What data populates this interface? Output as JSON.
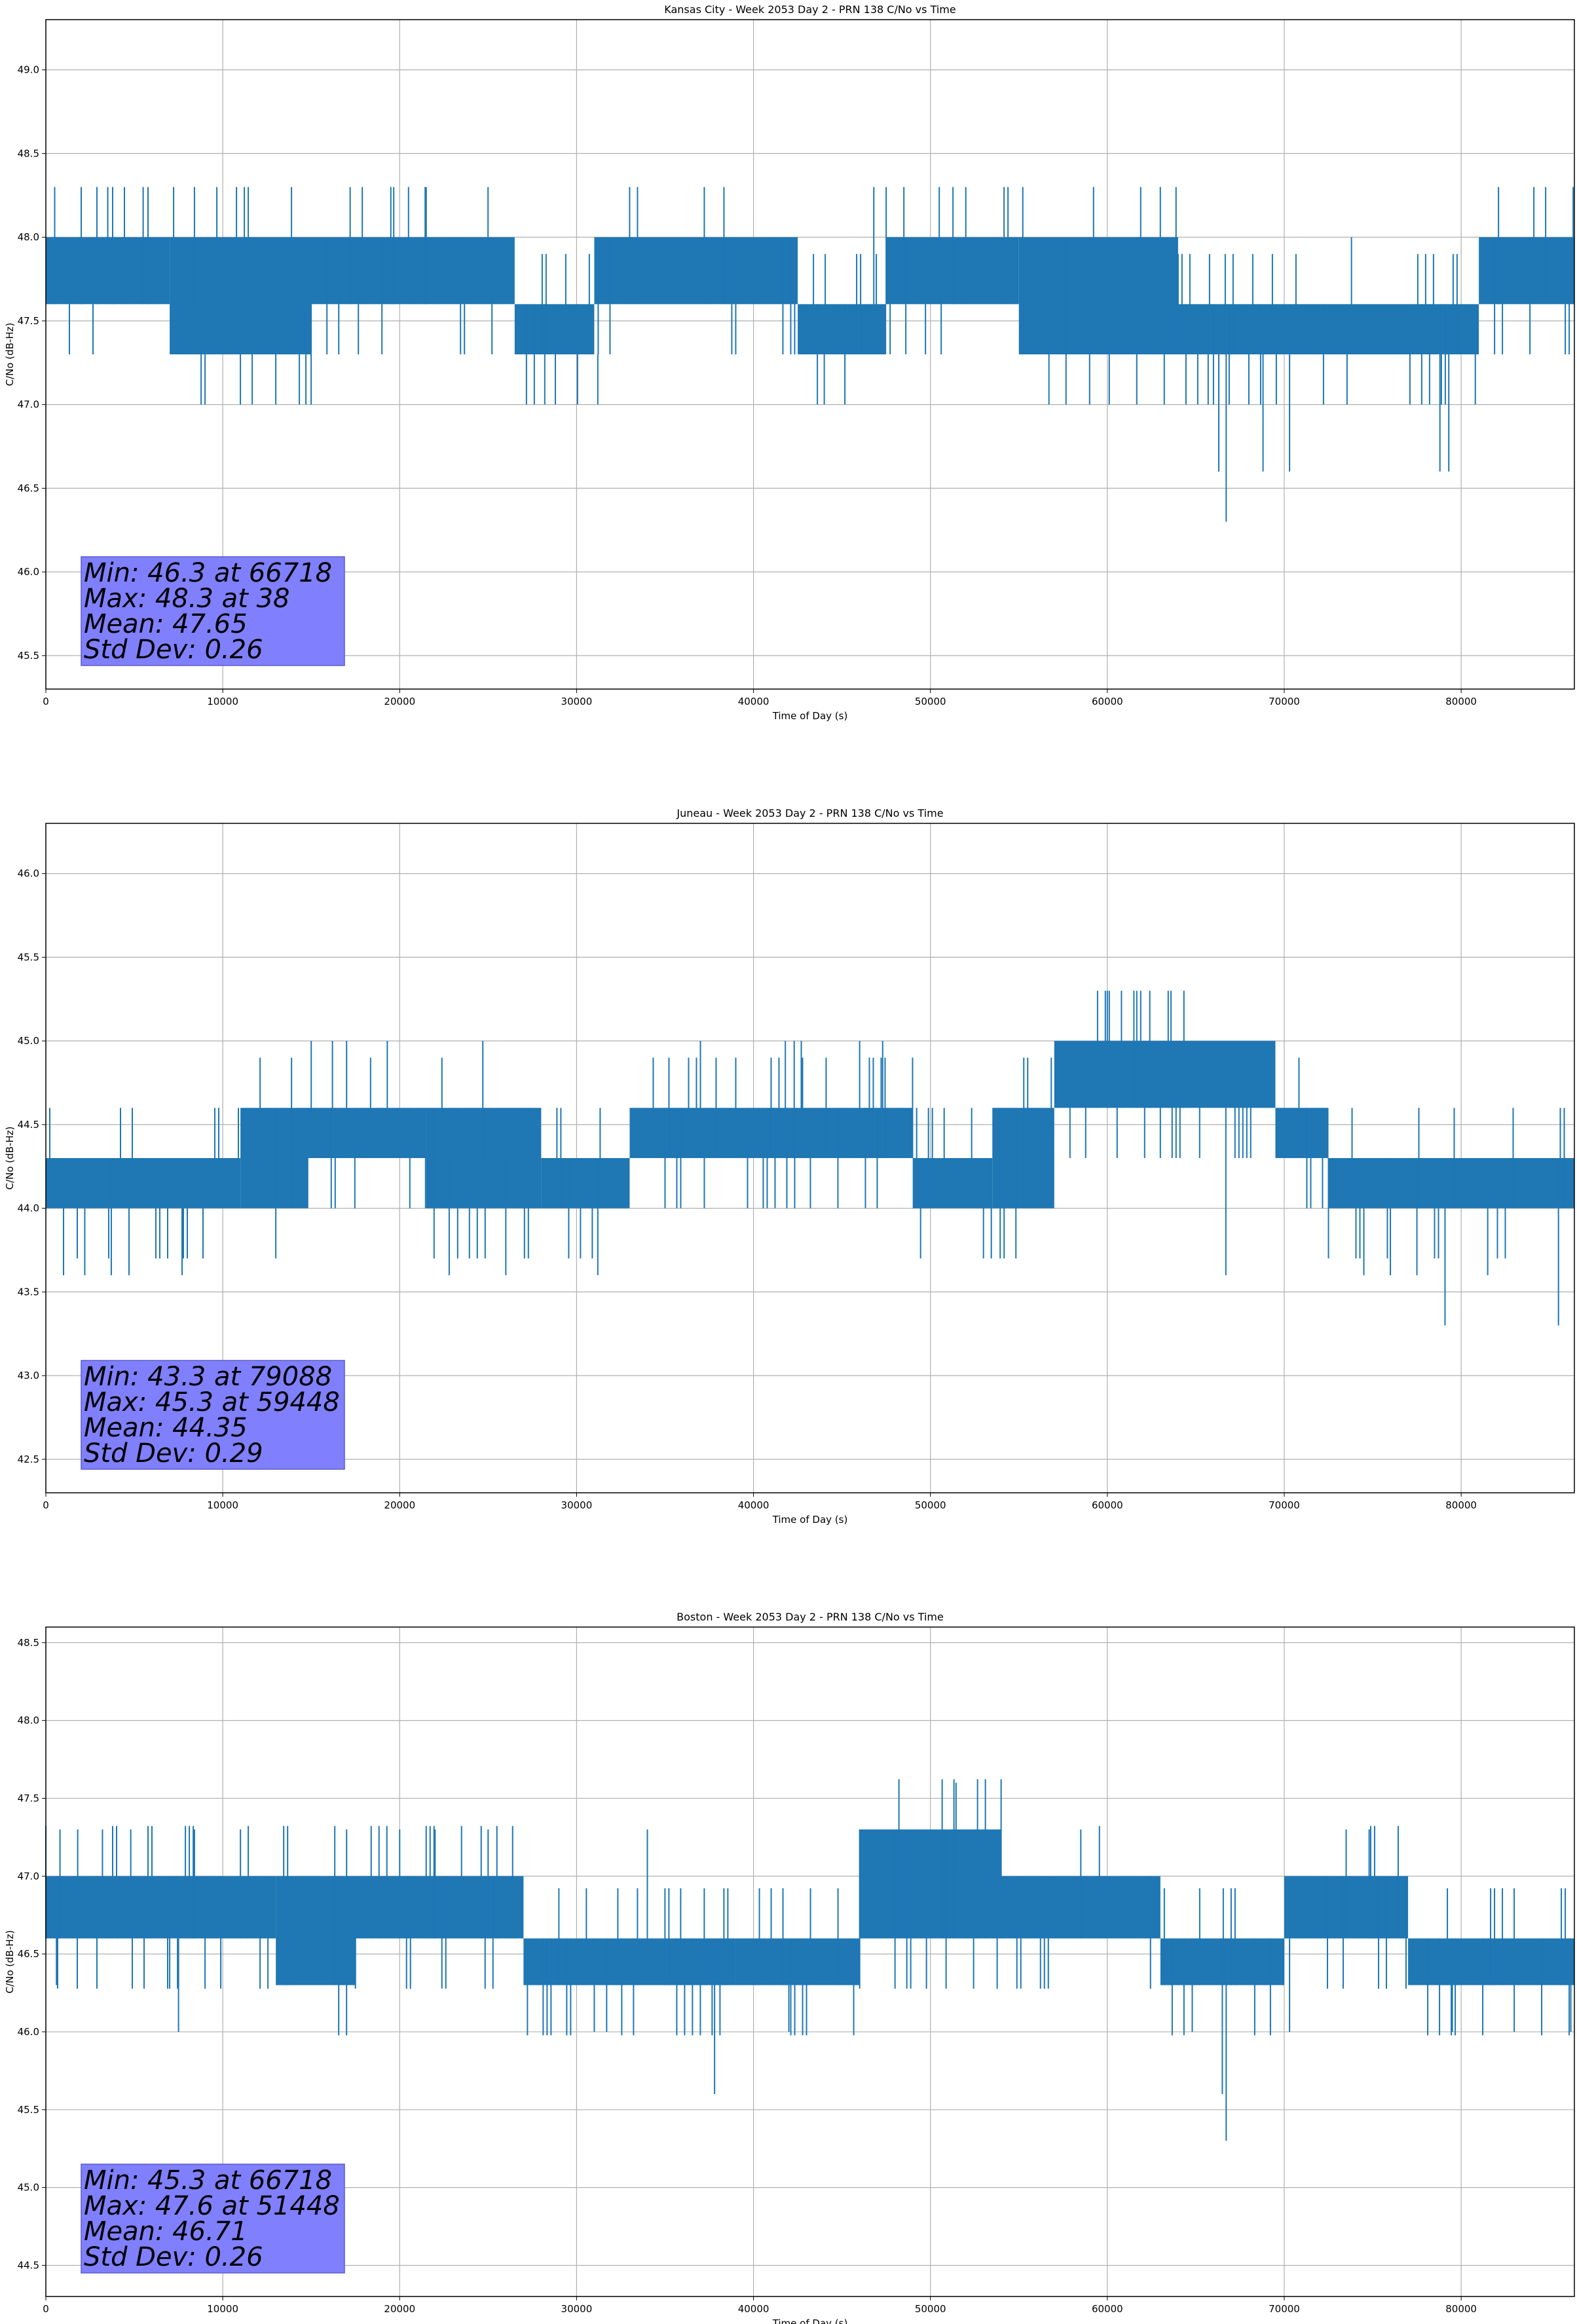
{
  "chart_data": [
    {
      "type": "line",
      "title": "Kansas City - Week 2053 Day 2 - PRN 138 C/No vs Time",
      "xlabel": "Time of Day (s)",
      "ylabel": "C/No (dB-Hz)",
      "xlim": [
        0,
        86400
      ],
      "ylim": [
        45.3,
        49.3
      ],
      "xticks": [
        0,
        10000,
        20000,
        30000,
        40000,
        50000,
        60000,
        70000,
        80000
      ],
      "xtick_labels": [
        "0",
        "10000",
        "20000",
        "30000",
        "40000",
        "50000",
        "60000",
        "70000",
        "80000"
      ],
      "yticks": [
        45.5,
        46.0,
        46.5,
        47.0,
        47.5,
        48.0,
        48.5,
        49.0
      ],
      "ytick_labels": [
        "45.5",
        "46.0",
        "46.5",
        "47.0",
        "47.5",
        "48.0",
        "48.5",
        "49.0"
      ],
      "grid": true,
      "series_color": "#1f77b4",
      "bands": [
        {
          "x": [
            0,
            7000
          ],
          "lo": 47.6,
          "hi": 48.0
        },
        {
          "x": [
            7000,
            15000
          ],
          "lo": 47.3,
          "hi": 48.0
        },
        {
          "x": [
            15000,
            26500
          ],
          "lo": 47.6,
          "hi": 48.0
        },
        {
          "x": [
            26500,
            31000
          ],
          "lo": 47.3,
          "hi": 47.6
        },
        {
          "x": [
            31000,
            42500
          ],
          "lo": 47.6,
          "hi": 48.0
        },
        {
          "x": [
            42500,
            47500
          ],
          "lo": 47.3,
          "hi": 47.6
        },
        {
          "x": [
            47500,
            55000
          ],
          "lo": 47.6,
          "hi": 48.0
        },
        {
          "x": [
            55000,
            64000
          ],
          "lo": 47.3,
          "hi": 48.0
        },
        {
          "x": [
            64000,
            81000
          ],
          "lo": 47.3,
          "hi": 47.6
        },
        {
          "x": [
            81000,
            86400
          ],
          "lo": 47.6,
          "hi": 48.0
        }
      ],
      "spikes": [
        {
          "x": 500,
          "lo": 47.6,
          "hi": 48.3
        },
        {
          "x": 2000,
          "lo": 47.6,
          "hi": 48.3
        },
        {
          "x": 3500,
          "lo": 47.6,
          "hi": 48.3
        },
        {
          "x": 5500,
          "lo": 47.6,
          "hi": 48.3
        },
        {
          "x": 8400,
          "lo": 47.6,
          "hi": 48.3
        },
        {
          "x": 17200,
          "lo": 47.6,
          "hi": 48.3
        },
        {
          "x": 19500,
          "lo": 47.6,
          "hi": 48.3
        },
        {
          "x": 20500,
          "lo": 47.6,
          "hi": 48.3
        },
        {
          "x": 21500,
          "lo": 47.6,
          "hi": 48.3
        },
        {
          "x": 46800,
          "lo": 47.6,
          "hi": 48.3
        },
        {
          "x": 48500,
          "lo": 47.6,
          "hi": 48.3
        },
        {
          "x": 50500,
          "lo": 47.6,
          "hi": 48.3
        },
        {
          "x": 52000,
          "lo": 47.6,
          "hi": 48.3
        },
        {
          "x": 14700,
          "lo": 47.0,
          "hi": 47.6
        },
        {
          "x": 28200,
          "lo": 47.0,
          "hi": 47.6
        },
        {
          "x": 28800,
          "lo": 47.0,
          "hi": 47.3
        },
        {
          "x": 31200,
          "lo": 47.0,
          "hi": 47.3
        },
        {
          "x": 44000,
          "lo": 47.0,
          "hi": 47.3
        },
        {
          "x": 56700,
          "lo": 47.0,
          "hi": 47.3
        },
        {
          "x": 65700,
          "lo": 47.0,
          "hi": 47.3
        },
        {
          "x": 66300,
          "lo": 46.6,
          "hi": 47.3
        },
        {
          "x": 66718,
          "lo": 46.3,
          "hi": 47.3
        },
        {
          "x": 68000,
          "lo": 47.0,
          "hi": 47.3
        },
        {
          "x": 68800,
          "lo": 46.6,
          "hi": 47.3
        },
        {
          "x": 70300,
          "lo": 46.6,
          "hi": 47.3
        },
        {
          "x": 73800,
          "lo": 47.3,
          "hi": 48.0
        },
        {
          "x": 78800,
          "lo": 46.6,
          "hi": 47.3
        },
        {
          "x": 79300,
          "lo": 46.6,
          "hi": 47.3
        },
        {
          "x": 80800,
          "lo": 47.0,
          "hi": 47.3
        }
      ],
      "noise_frac": 0.3,
      "stats_box": {
        "color": "#8080ff",
        "lines": [
          "Min: 46.3 at 66718",
          "Max: 48.3 at 38",
          "Mean: 47.65",
          "Std Dev: 0.26"
        ]
      }
    },
    {
      "type": "line",
      "title": "Juneau - Week 2053 Day 2 - PRN 138 C/No vs Time",
      "xlabel": "Time of Day (s)",
      "ylabel": "C/No (dB-Hz)",
      "xlim": [
        0,
        86400
      ],
      "ylim": [
        42.3,
        46.3
      ],
      "xticks": [
        0,
        10000,
        20000,
        30000,
        40000,
        50000,
        60000,
        70000,
        80000
      ],
      "xtick_labels": [
        "0",
        "10000",
        "20000",
        "30000",
        "40000",
        "50000",
        "60000",
        "70000",
        "80000"
      ],
      "yticks": [
        42.5,
        43.0,
        43.5,
        44.0,
        44.5,
        45.0,
        45.5,
        46.0
      ],
      "ytick_labels": [
        "42.5",
        "43.0",
        "43.5",
        "44.0",
        "44.5",
        "45.0",
        "45.5",
        "46.0"
      ],
      "grid": true,
      "series_color": "#1f77b4",
      "bands": [
        {
          "x": [
            0,
            11000
          ],
          "lo": 44.0,
          "hi": 44.3
        },
        {
          "x": [
            11000,
            14800
          ],
          "lo": 44.0,
          "hi": 44.6
        },
        {
          "x": [
            14800,
            21500
          ],
          "lo": 44.3,
          "hi": 44.6
        },
        {
          "x": [
            21500,
            28000
          ],
          "lo": 44.0,
          "hi": 44.6
        },
        {
          "x": [
            28000,
            33000
          ],
          "lo": 44.0,
          "hi": 44.3
        },
        {
          "x": [
            33000,
            49000
          ],
          "lo": 44.3,
          "hi": 44.6
        },
        {
          "x": [
            49000,
            53500
          ],
          "lo": 44.0,
          "hi": 44.3
        },
        {
          "x": [
            53500,
            57000
          ],
          "lo": 44.0,
          "hi": 44.6
        },
        {
          "x": [
            57000,
            69500
          ],
          "lo": 44.6,
          "hi": 45.0
        },
        {
          "x": [
            69500,
            72500
          ],
          "lo": 44.3,
          "hi": 44.6
        },
        {
          "x": [
            72500,
            86400
          ],
          "lo": 44.0,
          "hi": 44.3
        }
      ],
      "spikes": [
        {
          "x": 59448,
          "lo": 44.6,
          "hi": 45.3
        },
        {
          "x": 60000,
          "lo": 44.6,
          "hi": 45.3
        },
        {
          "x": 60800,
          "lo": 44.6,
          "hi": 45.3
        },
        {
          "x": 61500,
          "lo": 44.6,
          "hi": 45.3
        },
        {
          "x": 62400,
          "lo": 44.6,
          "hi": 45.3
        },
        {
          "x": 63600,
          "lo": 44.6,
          "hi": 45.3
        },
        {
          "x": 15000,
          "lo": 44.3,
          "hi": 45.0
        },
        {
          "x": 16200,
          "lo": 44.3,
          "hi": 45.0
        },
        {
          "x": 17000,
          "lo": 44.3,
          "hi": 45.0
        },
        {
          "x": 19300,
          "lo": 44.3,
          "hi": 45.0
        },
        {
          "x": 24700,
          "lo": 44.3,
          "hi": 45.0
        },
        {
          "x": 37000,
          "lo": 44.3,
          "hi": 45.0
        },
        {
          "x": 41800,
          "lo": 44.3,
          "hi": 45.0
        },
        {
          "x": 42300,
          "lo": 44.3,
          "hi": 45.0
        },
        {
          "x": 42700,
          "lo": 44.3,
          "hi": 45.0
        },
        {
          "x": 46000,
          "lo": 44.3,
          "hi": 45.0
        },
        {
          "x": 47300,
          "lo": 44.3,
          "hi": 45.0
        },
        {
          "x": 1000,
          "lo": 43.6,
          "hi": 44.3
        },
        {
          "x": 2200,
          "lo": 43.6,
          "hi": 44.3
        },
        {
          "x": 3700,
          "lo": 43.6,
          "hi": 44.3
        },
        {
          "x": 4700,
          "lo": 43.6,
          "hi": 44.3
        },
        {
          "x": 7700,
          "lo": 43.6,
          "hi": 44.3
        },
        {
          "x": 22800,
          "lo": 43.6,
          "hi": 44.3
        },
        {
          "x": 26000,
          "lo": 43.6,
          "hi": 44.3
        },
        {
          "x": 31200,
          "lo": 43.6,
          "hi": 44.3
        },
        {
          "x": 66700,
          "lo": 43.6,
          "hi": 44.6
        },
        {
          "x": 74500,
          "lo": 43.6,
          "hi": 44.3
        },
        {
          "x": 76000,
          "lo": 43.6,
          "hi": 44.3
        },
        {
          "x": 77500,
          "lo": 43.6,
          "hi": 44.3
        },
        {
          "x": 79088,
          "lo": 43.3,
          "hi": 44.3
        },
        {
          "x": 81500,
          "lo": 43.6,
          "hi": 44.3
        },
        {
          "x": 85500,
          "lo": 43.3,
          "hi": 44.3
        }
      ],
      "noise_frac": 0.3,
      "stats_box": {
        "color": "#8080ff",
        "lines": [
          "Min: 43.3 at 79088",
          "Max: 45.3 at 59448",
          "Mean: 44.35",
          "Std Dev: 0.29"
        ]
      }
    },
    {
      "type": "line",
      "title": "Boston - Week 2053 Day 2 - PRN 138 C/No vs Time",
      "xlabel": "Time of Day (s)",
      "ylabel": "C/No (dB-Hz)",
      "xlim": [
        0,
        86400
      ],
      "ylim": [
        44.3,
        48.6
      ],
      "xticks": [
        0,
        10000,
        20000,
        30000,
        40000,
        50000,
        60000,
        70000,
        80000
      ],
      "xtick_labels": [
        "0",
        "10000",
        "20000",
        "30000",
        "40000",
        "50000",
        "60000",
        "70000",
        "80000"
      ],
      "yticks": [
        44.5,
        45.0,
        45.5,
        46.0,
        46.5,
        47.0,
        47.5,
        48.0,
        48.5
      ],
      "ytick_labels": [
        "44.5",
        "45.0",
        "45.5",
        "46.0",
        "46.5",
        "47.0",
        "47.5",
        "48.0",
        "48.5"
      ],
      "grid": true,
      "series_color": "#1f77b4",
      "bands": [
        {
          "x": [
            0,
            7000
          ],
          "lo": 46.6,
          "hi": 47.0
        },
        {
          "x": [
            7000,
            13000
          ],
          "lo": 46.6,
          "hi": 47.0
        },
        {
          "x": [
            13000,
            17500
          ],
          "lo": 46.3,
          "hi": 47.0
        },
        {
          "x": [
            17500,
            27000
          ],
          "lo": 46.6,
          "hi": 47.0
        },
        {
          "x": [
            27000,
            39000
          ],
          "lo": 46.3,
          "hi": 46.6
        },
        {
          "x": [
            39000,
            46000
          ],
          "lo": 46.3,
          "hi": 46.6
        },
        {
          "x": [
            46000,
            54000
          ],
          "lo": 46.6,
          "hi": 47.3
        },
        {
          "x": [
            54000,
            63000
          ],
          "lo": 46.6,
          "hi": 47.0
        },
        {
          "x": [
            63000,
            70000
          ],
          "lo": 46.3,
          "hi": 46.6
        },
        {
          "x": [
            70000,
            77000
          ],
          "lo": 46.6,
          "hi": 47.0
        },
        {
          "x": [
            77000,
            86400
          ],
          "lo": 46.3,
          "hi": 46.6
        }
      ],
      "spikes": [
        {
          "x": 600,
          "lo": 46.3,
          "hi": 47.0
        },
        {
          "x": 800,
          "lo": 46.6,
          "hi": 47.3
        },
        {
          "x": 1800,
          "lo": 46.6,
          "hi": 47.3
        },
        {
          "x": 3200,
          "lo": 46.6,
          "hi": 47.3
        },
        {
          "x": 4800,
          "lo": 46.6,
          "hi": 47.3
        },
        {
          "x": 8400,
          "lo": 46.6,
          "hi": 47.3
        },
        {
          "x": 11000,
          "lo": 46.6,
          "hi": 47.3
        },
        {
          "x": 17000,
          "lo": 46.6,
          "hi": 47.3
        },
        {
          "x": 20000,
          "lo": 46.6,
          "hi": 47.3
        },
        {
          "x": 22000,
          "lo": 46.6,
          "hi": 47.3
        },
        {
          "x": 25000,
          "lo": 46.6,
          "hi": 47.3
        },
        {
          "x": 34000,
          "lo": 46.6,
          "hi": 47.3
        },
        {
          "x": 51448,
          "lo": 47.0,
          "hi": 47.6
        },
        {
          "x": 58500,
          "lo": 46.6,
          "hi": 47.3
        },
        {
          "x": 73500,
          "lo": 46.6,
          "hi": 47.3
        },
        {
          "x": 74800,
          "lo": 46.6,
          "hi": 47.3
        },
        {
          "x": 7500,
          "lo": 46.0,
          "hi": 46.6
        },
        {
          "x": 31000,
          "lo": 46.0,
          "hi": 46.6
        },
        {
          "x": 31700,
          "lo": 46.0,
          "hi": 46.6
        },
        {
          "x": 37800,
          "lo": 45.6,
          "hi": 46.6
        },
        {
          "x": 42000,
          "lo": 46.0,
          "hi": 46.3
        },
        {
          "x": 64800,
          "lo": 46.0,
          "hi": 46.6
        },
        {
          "x": 66500,
          "lo": 45.6,
          "hi": 46.6
        },
        {
          "x": 66718,
          "lo": 45.3,
          "hi": 46.6
        },
        {
          "x": 70300,
          "lo": 46.0,
          "hi": 46.6
        },
        {
          "x": 79500,
          "lo": 46.0,
          "hi": 46.6
        },
        {
          "x": 83000,
          "lo": 46.0,
          "hi": 46.3
        },
        {
          "x": 86200,
          "lo": 46.0,
          "hi": 46.6
        }
      ],
      "noise_frac": 0.3,
      "stats_box": {
        "color": "#8080ff",
        "lines": [
          "Min: 45.3 at 66718",
          "Max: 47.6 at 51448",
          "Mean: 46.71",
          "Std Dev: 0.26"
        ]
      }
    }
  ]
}
